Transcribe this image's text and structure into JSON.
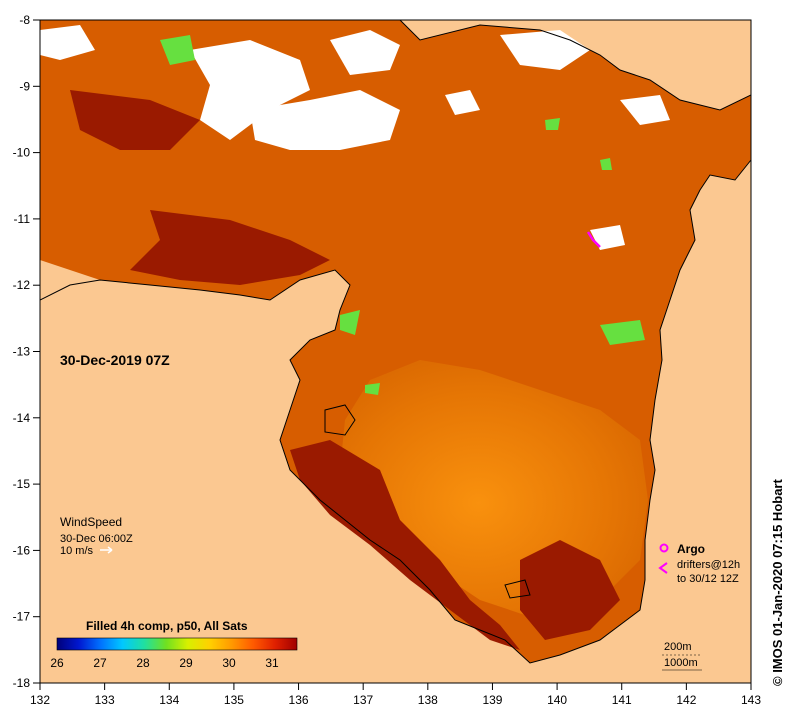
{
  "map": {
    "date_label": "30-Dec-2019 07Z",
    "credit": "© IMOS 01-Jan-2020 07:15 Hobart",
    "lon_ticks": [
      "132",
      "133",
      "134",
      "135",
      "136",
      "137",
      "138",
      "139",
      "140",
      "141",
      "142",
      "143"
    ],
    "lat_ticks": [
      "-8",
      "-9",
      "-10",
      "-11",
      "-12",
      "-13",
      "-14",
      "-15",
      "-16",
      "-17",
      "-18"
    ],
    "wind": {
      "title": "WindSpeed",
      "time": "30-Dec 06:00Z",
      "scale_label": "10 m/s"
    },
    "argo": {
      "argo_label": "Argo",
      "drifters_label": "drifters@12h",
      "drifters_until": "to 30/12 12Z"
    },
    "depth": {
      "shallow": "200m",
      "deep": "1000m"
    },
    "colorbar": {
      "title": "Filled 4h comp, p50, All Sats",
      "ticks": [
        "26",
        "27",
        "28",
        "29",
        "30",
        "31"
      ],
      "colors": [
        "#00007a",
        "#0018d0",
        "#0072ff",
        "#00c8ff",
        "#20e0a0",
        "#70e020",
        "#d8f000",
        "#ffd000",
        "#ff9a00",
        "#ff5a00",
        "#e02000",
        "#a00000"
      ]
    },
    "colors": {
      "land": "#fbc891",
      "sst_hot": "#9a1a00",
      "sst_warm": "#d75d00",
      "sst_mid": "#f09a10",
      "sst_cool": "#ffc31a",
      "cloud": "#ffffff",
      "green_patch": "#66e040",
      "argo": "#ff00ff"
    }
  }
}
